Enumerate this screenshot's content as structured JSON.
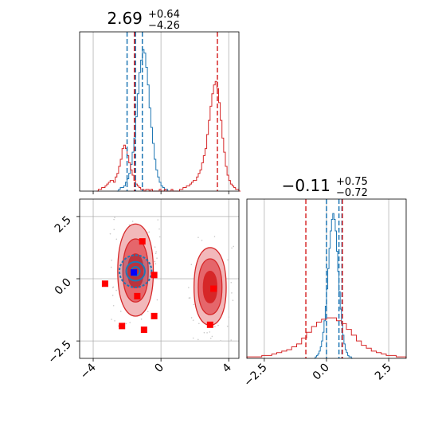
{
  "colors": {
    "blue": "#1f77b4",
    "red": "#d62728",
    "marker_red": "#ff0000",
    "marker_blue": "#0000ff",
    "grid": "#b0b0b0"
  },
  "chart_data": {
    "type": "corner",
    "grid": true,
    "panels": [
      {
        "name": "param1-marginal",
        "type": "histogram",
        "title": {
          "value": "2.69",
          "upper": "+0.64",
          "lower": "−4.26"
        },
        "xlim": [
          -4.8,
          4.6
        ],
        "x_ticks": [
          -4,
          0,
          4
        ],
        "series": [
          {
            "name": "",
            "color": "blue",
            "bin_start": -2.6,
            "bin_width": 0.1,
            "counts": [
              0,
              1,
              2,
              2,
              3,
              5,
              7,
              10,
              15,
              22,
              30,
              42,
              55,
              67,
              74,
              80,
              78,
              70,
              60,
              47,
              36,
              27,
              18,
              12,
              8,
              5,
              3,
              2,
              1,
              1,
              0
            ]
          },
          {
            "name": "",
            "color": "red",
            "bin_start": -3.8,
            "bin_width": 0.1,
            "counts": [
              0,
              1,
              1,
              2,
              2,
              3,
              4,
              5,
              6,
              6,
              5,
              8,
              10,
              14,
              18,
              24,
              26,
              24,
              20,
              16,
              12,
              9,
              6,
              4,
              3,
              2,
              1,
              1,
              0,
              1,
              1,
              0,
              1,
              0,
              0,
              0,
              0,
              1,
              0,
              0,
              1,
              0,
              0,
              0,
              1,
              0,
              0,
              0,
              0,
              1,
              1,
              2,
              2,
              3,
              3,
              4,
              5,
              6,
              6,
              8,
              10,
              12,
              16,
              20,
              24,
              32,
              40,
              48,
              55,
              60,
              62,
              58,
              50,
              40,
              30,
              22,
              14,
              9,
              6,
              4,
              3,
              2,
              1,
              1,
              0
            ]
          }
        ],
        "ymax": 90,
        "quantile_lines": [
          {
            "color": "blue",
            "x": [
              -2.0,
              -1.5,
              -1.1
            ]
          },
          {
            "color": "red",
            "x": [
              -1.57,
              3.33
            ]
          }
        ]
      },
      {
        "name": "joint-2d",
        "type": "contour",
        "xlim": [
          -4.8,
          4.6
        ],
        "ylim": [
          -3.2,
          3.2
        ],
        "x_ticks": [
          -4,
          0,
          4
        ],
        "y_ticks": [
          -2.5,
          0.0,
          2.5
        ],
        "y_tick_labels": [
          "−2.5",
          "0.0",
          "2.5"
        ],
        "x_tick_labels": [
          "−4",
          "0",
          "4"
        ],
        "red_modes": [
          {
            "cx": -1.5,
            "cy": 0.3,
            "levels": [
              [
                1.05,
                1.9,
                0.85
              ],
              [
                0.75,
                1.3,
                0.6
              ],
              [
                0.45,
                0.7,
                0.35
              ]
            ]
          },
          {
            "cx": 2.9,
            "cy": -0.35,
            "levels": [
              [
                0.95,
                1.6,
                0.85
              ],
              [
                0.7,
                1.15,
                0.6
              ],
              [
                0.4,
                0.65,
                0.35
              ]
            ]
          }
        ],
        "blue_mode": {
          "cx": -1.5,
          "cy": 0.3,
          "levels": [
            [
              0.95,
              0.65
            ],
            [
              0.55,
              0.38
            ],
            [
              0.25,
              0.18
            ]
          ]
        },
        "red_points": [
          [
            -1.1,
            1.5
          ],
          [
            -0.4,
            0.15
          ],
          [
            -1.4,
            -0.7
          ],
          [
            -3.3,
            -0.2
          ],
          [
            -2.3,
            -1.9
          ],
          [
            -1.0,
            -2.05
          ],
          [
            -0.4,
            -1.5
          ],
          [
            2.9,
            -1.85
          ],
          [
            3.1,
            -0.4
          ]
        ],
        "blue_points": [
          [
            -1.6,
            0.25
          ]
        ]
      },
      {
        "name": "param2-marginal",
        "type": "histogram",
        "title": {
          "value": "−0.11",
          "upper": "+0.75",
          "lower": "−0.72"
        },
        "xlim": [
          -3.2,
          3.2
        ],
        "x_ticks": [
          -2.5,
          0.0,
          2.5
        ],
        "x_tick_labels": [
          "−2.5",
          "0.0",
          "2.5"
        ],
        "series": [
          {
            "name": "",
            "color": "blue",
            "bin_start": -0.5,
            "bin_width": 0.05,
            "counts": [
              0,
              1,
              2,
              3,
              5,
              8,
              12,
              18,
              26,
              36,
              48,
              62,
              76,
              88,
              96,
              100,
              96,
              88,
              74,
              60,
              46,
              34,
              24,
              16,
              10,
              6,
              4,
              2,
              1,
              1,
              0
            ]
          },
          {
            "name": "",
            "color": "red",
            "bin_start": -3.2,
            "bin_width": 0.2,
            "counts": [
              1,
              1,
              1,
              2,
              2,
              3,
              4,
              5,
              6,
              8,
              10,
              14,
              18,
              22,
              25,
              27,
              28,
              28,
              26,
              24,
              20,
              16,
              12,
              9,
              7,
              5,
              4,
              3,
              2,
              2,
              1,
              1
            ]
          }
        ],
        "ymax": 110,
        "quantile_lines": [
          {
            "color": "blue",
            "x": [
              0.0,
              0.5,
              0.62
            ]
          },
          {
            "color": "red",
            "x": [
              -0.83,
              0.64
            ]
          }
        ]
      }
    ]
  }
}
